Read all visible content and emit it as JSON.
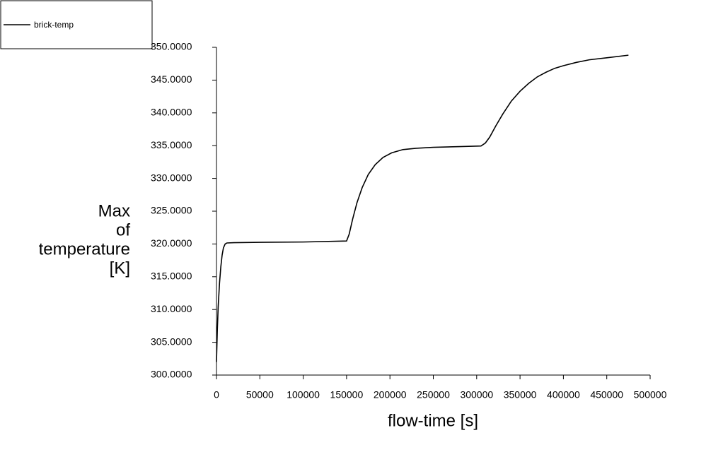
{
  "chart_data": {
    "type": "line",
    "xlabel": "flow-time [s]",
    "ylabel": [
      "Max",
      "of",
      "temperature",
      "[K]"
    ],
    "x": [
      0,
      1000,
      2000,
      3500,
      5000,
      6500,
      8000,
      10000,
      12000,
      20000,
      50000,
      100000,
      150000,
      153000,
      157000,
      162000,
      168000,
      175000,
      183000,
      192000,
      202000,
      215000,
      230000,
      250000,
      280000,
      305000,
      310000,
      315000,
      322000,
      330000,
      340000,
      350000,
      360000,
      370000,
      380000,
      390000,
      400000,
      415000,
      430000,
      450000,
      475000
    ],
    "series": [
      {
        "name": "brick-temp",
        "color": "#000000",
        "values": [
          302,
          307,
          310.5,
          314,
          316.5,
          318.3,
          319.4,
          320,
          320.15,
          320.2,
          320.25,
          320.3,
          320.45,
          321.5,
          323.8,
          326.3,
          328.6,
          330.6,
          332.1,
          333.2,
          333.9,
          334.4,
          334.6,
          334.75,
          334.85,
          334.95,
          335.4,
          336.3,
          338,
          339.8,
          341.8,
          343.3,
          344.5,
          345.5,
          346.2,
          346.8,
          347.2,
          347.7,
          348.1,
          348.4,
          348.8
        ]
      }
    ],
    "xlim": [
      0,
      500000
    ],
    "xticks": [
      0,
      50000,
      100000,
      150000,
      200000,
      250000,
      300000,
      350000,
      400000,
      450000,
      500000
    ],
    "ylim": [
      300,
      350
    ],
    "yticks": [
      {
        "value": 300,
        "label": "300.0000"
      },
      {
        "value": 305,
        "label": "305.0000"
      },
      {
        "value": 310,
        "label": "310.0000"
      },
      {
        "value": 315,
        "label": "315.0000"
      },
      {
        "value": 320,
        "label": "320.0000"
      },
      {
        "value": 325,
        "label": "325.0000"
      },
      {
        "value": 330,
        "label": "330.0000"
      },
      {
        "value": 335,
        "label": "335.0000"
      },
      {
        "value": 340,
        "label": "340.0000"
      },
      {
        "value": 345,
        "label": "345.0000"
      },
      {
        "value": 350,
        "label": "350.0000"
      }
    ]
  }
}
